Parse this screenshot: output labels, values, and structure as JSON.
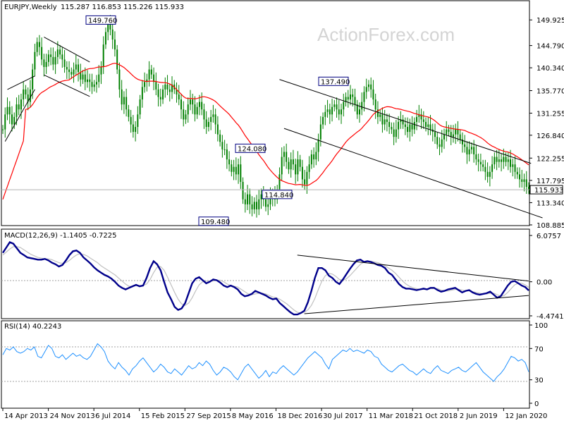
{
  "header": {
    "symbol": "EURJPY,Weekly",
    "ohlc": "115.287 116.853 115.226 115.933"
  },
  "watermark": "ActionForex.com",
  "colors": {
    "price": "#008000",
    "ma": "#ff0000",
    "macd": "#00008b",
    "signal": "#c0c0c0",
    "rsi": "#1e90ff",
    "trend": "#000000",
    "level_box": "#000080"
  },
  "chart_data": [
    {
      "type": "line",
      "panel": "price",
      "title": "EURJPY,Weekly",
      "y_ticks": [
        "149.925",
        "144.790",
        "140.340",
        "135.770",
        "131.255",
        "126.840",
        "122.255",
        "117.795",
        "113.340",
        "108.885"
      ],
      "ylim": [
        108.885,
        152.5
      ],
      "current_price_label": "115.933",
      "x_ticks": [
        "14 Apr 2013",
        "24 Nov 2013",
        "6 Jul 2014",
        "15 Feb 2015",
        "27 Sep 2015",
        "8 May 2016",
        "18 Dec 2016",
        "30 Jul 2017",
        "11 Mar 2018",
        "21 Oct 2018",
        "2 Jun 2019",
        "12 Jan 2020"
      ],
      "series": [
        {
          "values": [
            128.0,
            131.0,
            132.5,
            131.0,
            129.0,
            130.5,
            133.0,
            132.0,
            134.0,
            136.0,
            135.0,
            133.5,
            136.0,
            140.0,
            143.5,
            145.5,
            144.5,
            142.0,
            140.5,
            141.5,
            143.0,
            142.5,
            141.0,
            142.5,
            144.0,
            143.0,
            142.0,
            140.5,
            140.0,
            139.5,
            139.0,
            140.0,
            141.0,
            139.5,
            138.0,
            139.0,
            137.5,
            138.0,
            137.5,
            136.5,
            137.0,
            137.5,
            139.0,
            140.5,
            145.0,
            147.5,
            149.0,
            148.0,
            146.0,
            144.0,
            140.0,
            136.0,
            133.0,
            134.5,
            132.0,
            130.5,
            129.0,
            127.5,
            128.5,
            131.0,
            134.0,
            136.5,
            137.5,
            138.0,
            140.0,
            139.0,
            137.5,
            136.0,
            134.5,
            134.0,
            136.0,
            137.0,
            136.0,
            135.5,
            137.0,
            136.0,
            135.0,
            134.0,
            132.0,
            130.0,
            131.0,
            133.0,
            134.0,
            133.0,
            131.0,
            132.5,
            133.5,
            132.0,
            130.0,
            128.5,
            129.5,
            130.5,
            131.0,
            129.0,
            127.0,
            125.5,
            124.0,
            124.0,
            122.0,
            121.0,
            119.5,
            120.5,
            119.0,
            121.0,
            117.5,
            114.0,
            113.0,
            115.0,
            113.0,
            112.0,
            113.5,
            112.0,
            114.0,
            115.0,
            114.0,
            112.5,
            113.0,
            114.5,
            115.0,
            114.0,
            116.0,
            119.0,
            122.5,
            123.5,
            121.5,
            120.0,
            122.0,
            121.0,
            119.0,
            122.0,
            120.5,
            118.0,
            117.0,
            119.5,
            121.0,
            123.0,
            122.0,
            123.5,
            126.0,
            129.0,
            130.5,
            131.5,
            132.0,
            131.0,
            132.5,
            133.0,
            132.0,
            131.0,
            132.0,
            133.5,
            134.5,
            134.0,
            135.0,
            134.5,
            133.0,
            131.0,
            132.0,
            133.5,
            135.5,
            136.5,
            137.0,
            136.0,
            134.0,
            132.0,
            130.5,
            131.0,
            129.0,
            130.0,
            129.5,
            128.5,
            128.0,
            126.5,
            128.0,
            129.5,
            130.0,
            129.0,
            128.5,
            127.5,
            129.0,
            128.0,
            129.5,
            130.5,
            131.0,
            130.0,
            129.5,
            128.5,
            129.0,
            128.0,
            127.5,
            126.5,
            125.0,
            124.5,
            126.0,
            127.0,
            128.0,
            127.5,
            126.5,
            127.0,
            128.0,
            127.0,
            126.0,
            125.0,
            124.5,
            123.0,
            124.0,
            124.5,
            123.0,
            122.0,
            121.5,
            121.0,
            120.5,
            119.5,
            118.5,
            119.5,
            121.0,
            122.5,
            121.5,
            122.0,
            121.5,
            122.5,
            121.5,
            122.0,
            120.5,
            121.0,
            119.5,
            119.0,
            118.0,
            117.5,
            118.0,
            116.5,
            115.933
          ]
        }
      ],
      "level_labels": [
        {
          "text": "149.760",
          "value": 149.76
        },
        {
          "text": "137.490",
          "value": 137.49
        },
        {
          "text": "124.080",
          "value": 124.08
        },
        {
          "text": "114.840",
          "value": 114.84
        },
        {
          "text": "109.480",
          "value": 109.48
        }
      ]
    },
    {
      "type": "line",
      "panel": "macd",
      "title": "MACD(12,26,9) -1.1405 -0.7225",
      "y_ticks": [
        "6.0757",
        "0.00",
        "-4.4741"
      ],
      "ylim": [
        -4.4741,
        6.0757
      ],
      "series": [
        {
          "values": [
            3.8,
            4.5,
            5.2,
            5.0,
            4.4,
            3.8,
            3.5,
            3.2,
            3.1,
            3.0,
            2.9,
            2.9,
            3.0,
            2.8,
            2.5,
            2.3,
            2.0,
            2.2,
            2.8,
            3.5,
            4.0,
            4.1,
            3.8,
            3.2,
            2.8,
            2.4,
            1.9,
            1.5,
            1.2,
            0.9,
            0.7,
            0.4,
            0.0,
            -0.5,
            -0.8,
            -1.0,
            -0.8,
            -0.6,
            -0.4,
            -0.6,
            -0.5,
            0.5,
            1.8,
            2.7,
            2.3,
            1.5,
            0.0,
            -1.4,
            -2.3,
            -3.3,
            -3.7,
            -3.5,
            -2.8,
            -1.5,
            -0.2,
            0.4,
            0.6,
            0.2,
            -0.2,
            0.0,
            0.3,
            0.2,
            -0.1,
            -0.5,
            -0.7,
            -0.5,
            -0.7,
            -1.0,
            -1.6,
            -1.9,
            -1.8,
            -1.6,
            -1.2,
            -1.4,
            -1.6,
            -1.8,
            -2.1,
            -2.3,
            -2.2,
            -2.8,
            -3.2,
            -3.6,
            -4.0,
            -4.3,
            -4.3,
            -4.1,
            -3.8,
            -2.7,
            -1.2,
            0.5,
            1.8,
            1.8,
            1.5,
            0.8,
            0.5,
            0.0,
            -0.3,
            0.3,
            1.0,
            1.7,
            2.3,
            2.8,
            2.9,
            2.6,
            2.7,
            2.6,
            2.4,
            2.2,
            2.1,
            1.8,
            1.2,
            0.9,
            0.3,
            -0.3,
            -0.7,
            -0.9,
            -0.9,
            -1.0,
            -1.1,
            -1.0,
            -0.9,
            -1.0,
            -0.8,
            -0.8,
            -1.1,
            -1.3,
            -1.2,
            -1.0,
            -0.9,
            -0.8,
            -1.1,
            -1.4,
            -1.2,
            -1.1,
            -1.4,
            -1.6,
            -1.7,
            -1.6,
            -1.5,
            -1.3,
            -1.7,
            -2.1,
            -1.9,
            -1.2,
            -0.5,
            0.0,
            0.1,
            -0.2,
            -0.5,
            -0.7,
            -1.1405
          ]
        },
        {
          "values": [
            3.5,
            3.9,
            4.3,
            4.6,
            4.6,
            4.5,
            4.2,
            3.9,
            3.6,
            3.4,
            3.2,
            3.1,
            3.0,
            3.0,
            2.9,
            2.7,
            2.5,
            2.4,
            2.5,
            2.8,
            3.2,
            3.5,
            3.7,
            3.6,
            3.4,
            3.1,
            2.8,
            2.5,
            2.1,
            1.8,
            1.5,
            1.2,
            0.9,
            0.5,
            0.1,
            -0.3,
            -0.6,
            -0.6,
            -0.5,
            -0.5,
            -0.5,
            -0.3,
            0.3,
            1.2,
            1.9,
            2.0,
            1.5,
            0.6,
            -0.4,
            -1.4,
            -2.3,
            -2.9,
            -3.1,
            -2.8,
            -2.1,
            -1.2,
            -0.4,
            0.0,
            0.1,
            0.1,
            0.1,
            0.2,
            0.2,
            0.0,
            -0.3,
            -0.5,
            -0.6,
            -0.7,
            -1.0,
            -1.3,
            -1.6,
            -1.7,
            -1.6,
            -1.5,
            -1.5,
            -1.6,
            -1.8,
            -2.0,
            -2.1,
            -2.3,
            -2.6,
            -2.9,
            -3.3,
            -3.7,
            -4.0,
            -4.1,
            -4.0,
            -3.7,
            -3.1,
            -2.2,
            -1.0,
            0.1,
            0.8,
            1.1,
            1.0,
            0.7,
            0.3,
            0.2,
            0.4,
            0.8,
            1.3,
            1.8,
            2.3,
            2.6,
            2.7,
            2.7,
            2.6,
            2.5,
            2.3,
            2.1,
            1.8,
            1.5,
            1.1,
            0.6,
            0.1,
            -0.3,
            -0.6,
            -0.8,
            -0.9,
            -1.0,
            -1.0,
            -1.0,
            -0.9,
            -0.9,
            -0.9,
            -1.1,
            -1.2,
            -1.2,
            -1.1,
            -1.0,
            -1.0,
            -1.1,
            -1.2,
            -1.2,
            -1.3,
            -1.4,
            -1.5,
            -1.6,
            -1.6,
            -1.5,
            -1.5,
            -1.7,
            -1.9,
            -1.8,
            -1.4,
            -0.9,
            -0.4,
            -0.2,
            -0.2,
            -0.4,
            -0.7225
          ]
        }
      ]
    },
    {
      "type": "line",
      "panel": "rsi",
      "title": "RSI(14) 40.2243",
      "y_ticks": [
        "100",
        "70",
        "30",
        "0"
      ],
      "ylim": [
        0,
        100
      ],
      "series": [
        {
          "values": [
            62,
            70,
            68,
            72,
            66,
            64,
            66,
            70,
            68,
            72,
            60,
            58,
            66,
            74,
            70,
            60,
            58,
            62,
            56,
            60,
            64,
            60,
            62,
            58,
            56,
            60,
            68,
            76,
            72,
            66,
            54,
            48,
            44,
            52,
            46,
            42,
            36,
            44,
            48,
            54,
            58,
            52,
            46,
            40,
            44,
            50,
            46,
            40,
            38,
            44,
            40,
            36,
            42,
            48,
            44,
            46,
            52,
            48,
            54,
            50,
            42,
            36,
            40,
            46,
            44,
            40,
            34,
            30,
            38,
            46,
            50,
            44,
            38,
            32,
            36,
            42,
            34,
            40,
            38,
            44,
            48,
            44,
            40,
            36,
            40,
            46,
            52,
            58,
            62,
            66,
            62,
            58,
            50,
            44,
            56,
            60,
            64,
            68,
            66,
            70,
            66,
            68,
            66,
            64,
            68,
            66,
            60,
            58,
            50,
            46,
            42,
            40,
            44,
            48,
            50,
            46,
            42,
            40,
            36,
            40,
            44,
            40,
            38,
            44,
            48,
            42,
            40,
            38,
            42,
            44,
            46,
            42,
            40,
            44,
            48,
            52,
            46,
            40,
            36,
            32,
            28,
            34,
            38,
            44,
            52,
            60,
            58,
            54,
            56,
            52,
            40.2
          ]
        }
      ]
    }
  ]
}
